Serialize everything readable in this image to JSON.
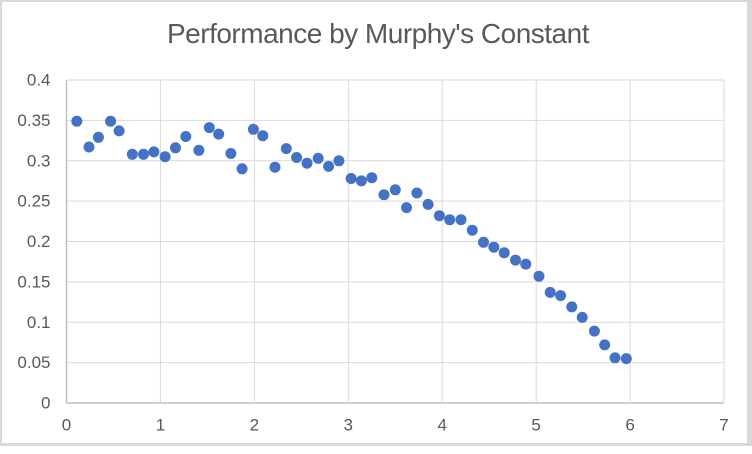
{
  "window": {
    "background": "#FFFFFF",
    "frame_border_color": "#D9D9D9"
  },
  "chart": {
    "marker_color": "#4472C4",
    "gridline_color": "#D9D9D9",
    "axis_line_color": "#BFBFBF",
    "tick_label_color": "#595959",
    "title_color": "#595959"
  },
  "chart_data": {
    "type": "scatter",
    "title": "Performance by Murphy's Constant",
    "xlabel": "",
    "ylabel": "",
    "xlim": [
      0,
      7
    ],
    "ylim": [
      0,
      0.4
    ],
    "grid": true,
    "legend": false,
    "x_ticks": [
      {
        "value": 0,
        "label": "0"
      },
      {
        "value": 1,
        "label": "1"
      },
      {
        "value": 2,
        "label": "2"
      },
      {
        "value": 3,
        "label": "3"
      },
      {
        "value": 4,
        "label": "4"
      },
      {
        "value": 5,
        "label": "5"
      },
      {
        "value": 6,
        "label": "6"
      },
      {
        "value": 7,
        "label": "7"
      }
    ],
    "y_ticks": [
      {
        "value": 0,
        "label": "0"
      },
      {
        "value": 0.05,
        "label": "0.05"
      },
      {
        "value": 0.1,
        "label": "0.1"
      },
      {
        "value": 0.15,
        "label": "0.15"
      },
      {
        "value": 0.2,
        "label": "0.2"
      },
      {
        "value": 0.25,
        "label": "0.25"
      },
      {
        "value": 0.3,
        "label": "0.3"
      },
      {
        "value": 0.35,
        "label": "0.35"
      },
      {
        "value": 0.4,
        "label": "0.4"
      }
    ],
    "series": [
      {
        "name": "",
        "x": [
          0.11,
          0.24,
          0.34,
          0.47,
          0.56,
          0.7,
          0.82,
          0.93,
          1.05,
          1.16,
          1.27,
          1.41,
          1.52,
          1.62,
          1.75,
          1.87,
          1.99,
          2.09,
          2.22,
          2.34,
          2.45,
          2.56,
          2.68,
          2.79,
          2.9,
          3.03,
          3.14,
          3.25,
          3.38,
          3.5,
          3.62,
          3.73,
          3.85,
          3.97,
          4.08,
          4.2,
          4.32,
          4.44,
          4.55,
          4.66,
          4.78,
          4.89,
          5.03,
          5.15,
          5.26,
          5.38,
          5.49,
          5.62,
          5.73,
          5.84,
          5.96
        ],
        "y": [
          0.349,
          0.317,
          0.329,
          0.349,
          0.337,
          0.308,
          0.308,
          0.311,
          0.305,
          0.316,
          0.33,
          0.313,
          0.341,
          0.333,
          0.309,
          0.29,
          0.339,
          0.331,
          0.292,
          0.315,
          0.304,
          0.297,
          0.303,
          0.293,
          0.3,
          0.278,
          0.275,
          0.279,
          0.258,
          0.264,
          0.242,
          0.26,
          0.246,
          0.232,
          0.227,
          0.227,
          0.214,
          0.199,
          0.193,
          0.186,
          0.177,
          0.172,
          0.157,
          0.137,
          0.133,
          0.119,
          0.106,
          0.089,
          0.072,
          0.056,
          0.055
        ]
      }
    ]
  }
}
